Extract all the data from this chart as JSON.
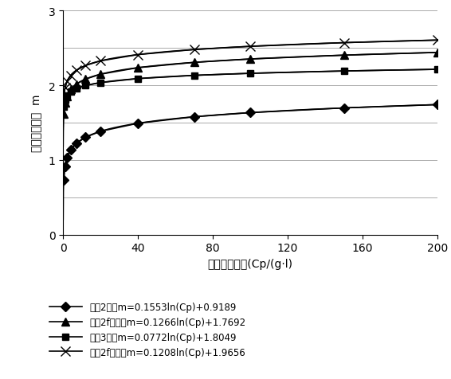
{
  "title": "",
  "xlabel": "地层水矿化度(Cp/(g·l)",
  "ylabel": "孔隙结构指数  m",
  "xlim": [
    0,
    200
  ],
  "ylim": [
    0,
    3
  ],
  "ytick_labels": [
    "0",
    "1",
    "2",
    "3"
  ],
  "ytick_positions": [
    0,
    1,
    2,
    3
  ],
  "ygrid_positions": [
    0,
    0.5,
    1.0,
    1.5,
    2.0,
    2.5,
    3.0
  ],
  "xticks": [
    0,
    40,
    80,
    120,
    160,
    200
  ],
  "series": [
    {
      "label": "毛坝2井：m=0.1553ln(Cp)+0.9189",
      "a": 0.1553,
      "b": 0.9189,
      "marker": "D",
      "color": "#000000",
      "linewidth": 1.2,
      "markersize": 6,
      "markerfacecolor": "#000000",
      "x_markers": [
        0.3,
        1,
        2,
        4,
        7,
        12,
        20,
        40,
        70,
        100,
        150,
        200
      ]
    },
    {
      "label": "普光2f下段：m=0.1266ln(Cp)+1.7692",
      "a": 0.1266,
      "b": 1.7692,
      "marker": "^",
      "color": "#000000",
      "linewidth": 1.2,
      "markersize": 7,
      "markerfacecolor": "#000000",
      "x_markers": [
        0.3,
        1,
        2,
        4,
        7,
        12,
        20,
        40,
        70,
        100,
        150,
        200
      ]
    },
    {
      "label": "毛坝3井：m=0.0772ln(Cp)+1.8049",
      "a": 0.0772,
      "b": 1.8049,
      "marker": "s",
      "color": "#000000",
      "linewidth": 1.2,
      "markersize": 6,
      "markerfacecolor": "#000000",
      "x_markers": [
        0.3,
        1,
        2,
        4,
        7,
        12,
        20,
        40,
        70,
        100,
        150,
        200
      ]
    },
    {
      "label": "普光2f上段：m=0.1208ln(Cp)+1.9656",
      "a": 0.1208,
      "b": 1.9656,
      "marker": "x",
      "color": "#000000",
      "linewidth": 1.2,
      "markersize": 8,
      "markerfacecolor": "#000000",
      "x_markers": [
        0.3,
        1,
        2,
        4,
        7,
        12,
        20,
        40,
        70,
        100,
        150,
        200
      ]
    }
  ],
  "grid_color": "#aaaaaa",
  "grid_linewidth": 0.7,
  "background_color": "#ffffff",
  "legend_fontsize": 8.5,
  "axis_fontsize": 10,
  "tick_fontsize": 10
}
